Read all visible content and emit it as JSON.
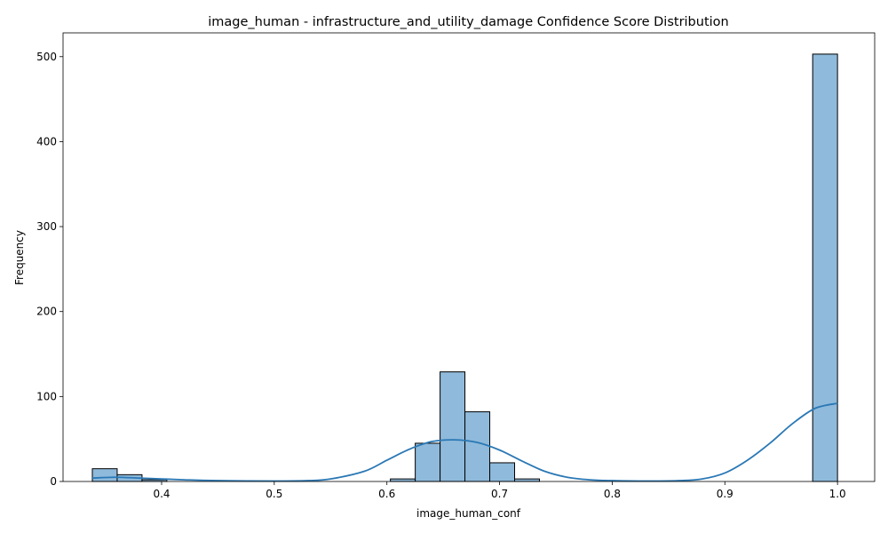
{
  "chart_data": {
    "type": "bar",
    "title": "image_human - infrastructure_and_utility_damage Confidence Score Distribution",
    "xlabel": "image_human_conf",
    "ylabel": "Frequency",
    "xlim": [
      0.3125,
      1.033
    ],
    "ylim": [
      0,
      528
    ],
    "xticks": [
      0.4,
      0.5,
      0.6,
      0.7,
      0.8,
      0.9,
      1.0
    ],
    "xtick_labels": [
      "0.4",
      "0.5",
      "0.6",
      "0.7",
      "0.8",
      "0.9",
      "1.0"
    ],
    "yticks": [
      0,
      100,
      200,
      300,
      400,
      500
    ],
    "ytick_labels": [
      "0",
      "100",
      "200",
      "300",
      "400",
      "500"
    ],
    "bin_start": 0.3385,
    "bin_width": 0.02205,
    "values": [
      15,
      8,
      2,
      0,
      0,
      0,
      0,
      0,
      0,
      0,
      0,
      0,
      3,
      45,
      129,
      82,
      22,
      3,
      0,
      0,
      0,
      0,
      0,
      0,
      0,
      0,
      0,
      0,
      0,
      503
    ],
    "bar_color": "#8fbadb",
    "edge_color": "#000000",
    "kde": {
      "color": "#2a78b5",
      "x": [
        0.3385,
        0.36,
        0.38,
        0.4,
        0.42,
        0.45,
        0.5,
        0.53,
        0.55,
        0.58,
        0.6,
        0.62,
        0.64,
        0.66,
        0.68,
        0.7,
        0.72,
        0.74,
        0.76,
        0.78,
        0.8,
        0.83,
        0.86,
        0.88,
        0.9,
        0.92,
        0.94,
        0.96,
        0.98,
        1.0
      ],
      "y": [
        4,
        5,
        4,
        3,
        2,
        1,
        0.5,
        1,
        3,
        12,
        25,
        38,
        47,
        49,
        46,
        37,
        24,
        12,
        5,
        2,
        1,
        0.5,
        1,
        3,
        10,
        25,
        45,
        68,
        86,
        92
      ]
    },
    "grid": false,
    "legend": "none"
  }
}
